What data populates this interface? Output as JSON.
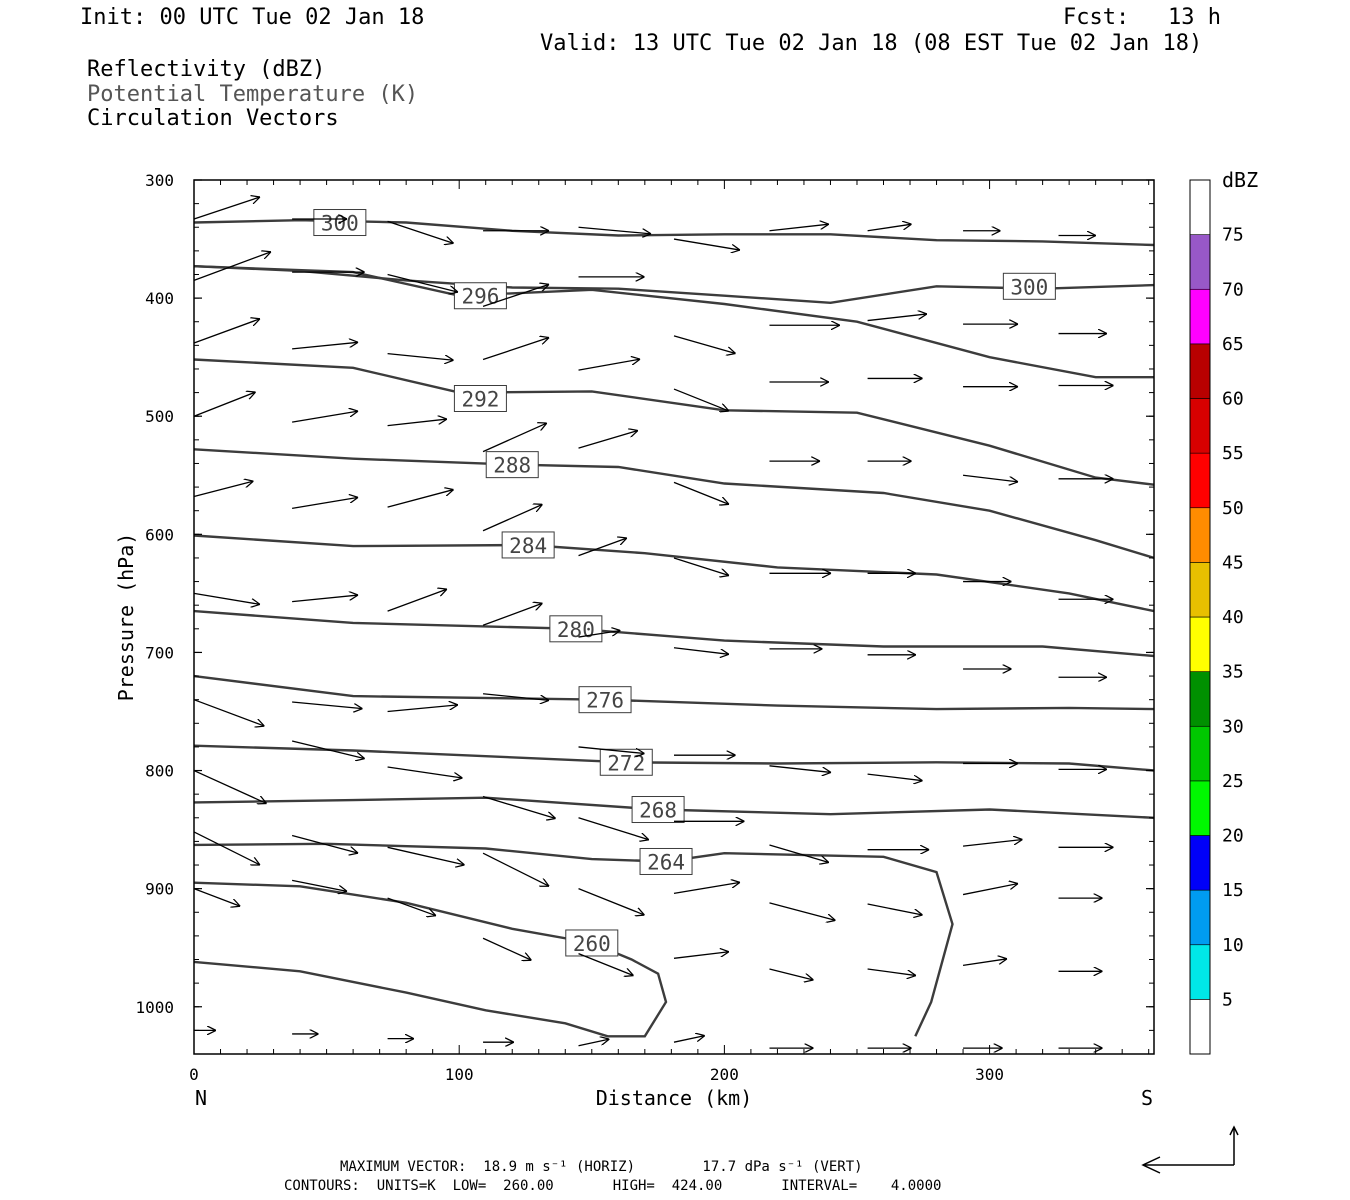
{
  "header": {
    "init": "Init: 00 UTC Tue 02 Jan 18",
    "fcst_label": "Fcst:",
    "fcst_value": "13 h",
    "valid": "Valid: 13 UTC Tue 02 Jan 18 (08 EST Tue 02 Jan 18)"
  },
  "fields": {
    "reflectivity": "Reflectivity (dBZ)",
    "theta": "Potential Temperature (K)",
    "vectors": "Circulation Vectors"
  },
  "colors": {
    "contour": "#3c3c3c",
    "vector": "#000000",
    "theta_legend": "#555555"
  },
  "chart_data": {
    "type": "line",
    "xlabel": "Distance (km)",
    "ylabel": "Pressure (hPa)",
    "xlim": [
      0,
      362
    ],
    "ylim": [
      300,
      1040
    ],
    "y_reversed": true,
    "x_ticks": [
      0,
      100,
      200,
      300
    ],
    "y_ticks": [
      300,
      400,
      500,
      600,
      700,
      800,
      900,
      1000
    ],
    "x_end_labels": {
      "left": "N",
      "right": "S"
    },
    "contours": [
      {
        "name": "300",
        "label_x": 55,
        "label_y": 336,
        "points": [
          [
            0,
            336
          ],
          [
            40,
            334
          ],
          [
            80,
            336
          ],
          [
            120,
            343
          ],
          [
            160,
            347
          ],
          [
            200,
            346
          ],
          [
            240,
            346
          ],
          [
            280,
            351
          ],
          [
            320,
            352
          ],
          [
            362,
            355
          ]
        ]
      },
      {
        "name": "300b",
        "label_x": 315,
        "label_y": 390,
        "points": [
          [
            0,
            373
          ],
          [
            40,
            377
          ],
          [
            80,
            385
          ],
          [
            120,
            391
          ],
          [
            160,
            392
          ],
          [
            200,
            398
          ],
          [
            240,
            404
          ],
          [
            280,
            390
          ],
          [
            320,
            392
          ],
          [
            362,
            389
          ]
        ]
      },
      {
        "name": "296",
        "label_x": 108,
        "label_y": 398,
        "points": [
          [
            0,
            373
          ],
          [
            60,
            378
          ],
          [
            100,
            398
          ],
          [
            150,
            393
          ],
          [
            200,
            405
          ],
          [
            250,
            420
          ],
          [
            300,
            450
          ],
          [
            340,
            467
          ],
          [
            362,
            467
          ]
        ]
      },
      {
        "name": "292",
        "label_x": 108,
        "label_y": 485,
        "points": [
          [
            0,
            452
          ],
          [
            60,
            459
          ],
          [
            100,
            480
          ],
          [
            150,
            479
          ],
          [
            200,
            495
          ],
          [
            250,
            497
          ],
          [
            300,
            525
          ],
          [
            340,
            552
          ],
          [
            362,
            558
          ]
        ]
      },
      {
        "name": "288",
        "label_x": 120,
        "label_y": 541,
        "points": [
          [
            0,
            528
          ],
          [
            60,
            536
          ],
          [
            120,
            541
          ],
          [
            160,
            543
          ],
          [
            200,
            557
          ],
          [
            260,
            565
          ],
          [
            300,
            580
          ],
          [
            340,
            605
          ],
          [
            362,
            620
          ]
        ]
      },
      {
        "name": "284",
        "label_x": 126,
        "label_y": 609,
        "points": [
          [
            0,
            601
          ],
          [
            60,
            610
          ],
          [
            126,
            609
          ],
          [
            170,
            616
          ],
          [
            220,
            628
          ],
          [
            280,
            634
          ],
          [
            330,
            650
          ],
          [
            362,
            665
          ]
        ]
      },
      {
        "name": "280",
        "label_x": 144,
        "label_y": 680,
        "points": [
          [
            0,
            665
          ],
          [
            60,
            675
          ],
          [
            144,
            680
          ],
          [
            200,
            690
          ],
          [
            260,
            695
          ],
          [
            320,
            695
          ],
          [
            362,
            703
          ]
        ]
      },
      {
        "name": "276",
        "label_x": 155,
        "label_y": 740,
        "points": [
          [
            0,
            720
          ],
          [
            60,
            737
          ],
          [
            155,
            740
          ],
          [
            220,
            745
          ],
          [
            280,
            748
          ],
          [
            330,
            747
          ],
          [
            362,
            748
          ]
        ]
      },
      {
        "name": "272",
        "label_x": 163,
        "label_y": 793,
        "points": [
          [
            0,
            779
          ],
          [
            60,
            783
          ],
          [
            163,
            793
          ],
          [
            220,
            794
          ],
          [
            280,
            793
          ],
          [
            330,
            794
          ],
          [
            362,
            800
          ]
        ]
      },
      {
        "name": "268",
        "label_x": 175,
        "label_y": 833,
        "points": [
          [
            0,
            827
          ],
          [
            60,
            825
          ],
          [
            110,
            823
          ],
          [
            175,
            833
          ],
          [
            240,
            837
          ],
          [
            300,
            833
          ],
          [
            362,
            840
          ]
        ]
      },
      {
        "name": "264",
        "label_x": 178,
        "label_y": 877,
        "points": [
          [
            0,
            863
          ],
          [
            50,
            862
          ],
          [
            110,
            866
          ],
          [
            150,
            875
          ],
          [
            178,
            877
          ],
          [
            200,
            870
          ],
          [
            260,
            873
          ],
          [
            280,
            886
          ],
          [
            286,
            930
          ],
          [
            278,
            996
          ],
          [
            272,
            1025
          ]
        ]
      },
      {
        "name": "260",
        "label_x": 150,
        "label_y": 946,
        "points": [
          [
            0,
            962
          ],
          [
            40,
            970
          ],
          [
            80,
            988
          ],
          [
            110,
            1003
          ],
          [
            140,
            1014
          ],
          [
            156,
            1025
          ],
          [
            170,
            1025
          ],
          [
            178,
            996
          ],
          [
            175,
            972
          ],
          [
            165,
            960
          ],
          [
            150,
            946
          ],
          [
            120,
            934
          ],
          [
            80,
            912
          ],
          [
            40,
            898
          ],
          [
            0,
            895
          ]
        ]
      }
    ],
    "vectors_units": "x in km, y in hPa, u/w in screen-scaled vector components",
    "vectors": [
      [
        0,
        333,
        30,
        -10
      ],
      [
        0,
        385,
        35,
        -13
      ],
      [
        0,
        438,
        30,
        -11
      ],
      [
        0,
        500,
        28,
        -11
      ],
      [
        0,
        568,
        27,
        -7
      ],
      [
        0,
        650,
        30,
        5
      ],
      [
        0,
        740,
        32,
        12
      ],
      [
        0,
        800,
        33,
        15
      ],
      [
        0,
        852,
        30,
        15
      ],
      [
        0,
        900,
        21,
        8
      ],
      [
        37,
        333,
        25,
        0
      ],
      [
        37,
        378,
        33,
        0
      ],
      [
        37,
        443,
        30,
        -3
      ],
      [
        37,
        505,
        30,
        -5
      ],
      [
        37,
        578,
        30,
        -5
      ],
      [
        37,
        657,
        30,
        -3
      ],
      [
        37,
        742,
        32,
        3
      ],
      [
        37,
        775,
        33,
        8
      ],
      [
        37,
        855,
        30,
        8
      ],
      [
        37,
        893,
        25,
        5
      ],
      [
        73,
        335,
        30,
        10
      ],
      [
        73,
        380,
        32,
        8
      ],
      [
        73,
        447,
        30,
        3
      ],
      [
        73,
        508,
        27,
        -3
      ],
      [
        73,
        577,
        30,
        -8
      ],
      [
        73,
        665,
        27,
        -10
      ],
      [
        73,
        750,
        32,
        -3
      ],
      [
        73,
        797,
        34,
        5
      ],
      [
        73,
        865,
        35,
        8
      ],
      [
        73,
        908,
        22,
        8
      ],
      [
        109,
        343,
        30,
        0
      ],
      [
        109,
        407,
        30,
        -10
      ],
      [
        109,
        452,
        30,
        -10
      ],
      [
        109,
        530,
        29,
        -13
      ],
      [
        109,
        597,
        27,
        -12
      ],
      [
        109,
        677,
        27,
        -10
      ],
      [
        109,
        735,
        30,
        3
      ],
      [
        109,
        822,
        33,
        10
      ],
      [
        109,
        870,
        30,
        15
      ],
      [
        109,
        942,
        22,
        10
      ],
      [
        145,
        340,
        33,
        3
      ],
      [
        145,
        382,
        30,
        0
      ],
      [
        145,
        461,
        28,
        -5
      ],
      [
        145,
        527,
        27,
        -8
      ],
      [
        145,
        618,
        22,
        -8
      ],
      [
        145,
        687,
        19,
        -3
      ],
      [
        145,
        780,
        30,
        3
      ],
      [
        145,
        840,
        32,
        10
      ],
      [
        145,
        900,
        30,
        12
      ],
      [
        145,
        955,
        25,
        10
      ],
      [
        181,
        350,
        30,
        5
      ],
      [
        181,
        432,
        28,
        8
      ],
      [
        181,
        477,
        25,
        10
      ],
      [
        181,
        556,
        25,
        10
      ],
      [
        181,
        620,
        25,
        8
      ],
      [
        181,
        696,
        25,
        3
      ],
      [
        181,
        787,
        28,
        0
      ],
      [
        181,
        843,
        32,
        0
      ],
      [
        181,
        904,
        30,
        -5
      ],
      [
        181,
        959,
        25,
        -3
      ],
      [
        217,
        343,
        27,
        -3
      ],
      [
        217,
        423,
        32,
        0
      ],
      [
        217,
        471,
        27,
        0
      ],
      [
        217,
        538,
        23,
        0
      ],
      [
        217,
        633,
        28,
        0
      ],
      [
        217,
        697,
        24,
        0
      ],
      [
        217,
        796,
        28,
        3
      ],
      [
        217,
        863,
        27,
        8
      ],
      [
        217,
        912,
        30,
        8
      ],
      [
        217,
        968,
        20,
        5
      ],
      [
        254,
        343,
        20,
        -3
      ],
      [
        254,
        419,
        27,
        -3
      ],
      [
        254,
        468,
        25,
        0
      ],
      [
        254,
        538,
        20,
        0
      ],
      [
        254,
        633,
        22,
        0
      ],
      [
        254,
        702,
        22,
        0
      ],
      [
        254,
        803,
        25,
        3
      ],
      [
        254,
        867,
        28,
        0
      ],
      [
        254,
        913,
        25,
        5
      ],
      [
        254,
        968,
        22,
        3
      ],
      [
        290,
        343,
        17,
        0
      ],
      [
        290,
        422,
        25,
        0
      ],
      [
        290,
        475,
        25,
        0
      ],
      [
        290,
        550,
        25,
        3
      ],
      [
        290,
        640,
        22,
        0
      ],
      [
        290,
        714,
        22,
        0
      ],
      [
        290,
        794,
        25,
        0
      ],
      [
        290,
        864,
        27,
        -3
      ],
      [
        290,
        905,
        25,
        -5
      ],
      [
        290,
        965,
        20,
        -3
      ],
      [
        326,
        347,
        17,
        0
      ],
      [
        326,
        430,
        22,
        0
      ],
      [
        326,
        474,
        25,
        0
      ],
      [
        326,
        553,
        25,
        0
      ],
      [
        326,
        655,
        25,
        0
      ],
      [
        326,
        721,
        22,
        0
      ],
      [
        326,
        799,
        22,
        0
      ],
      [
        326,
        865,
        25,
        0
      ],
      [
        326,
        908,
        20,
        0
      ],
      [
        326,
        970,
        20,
        0
      ],
      [
        0,
        1020,
        10,
        0
      ],
      [
        37,
        1023,
        12,
        0
      ],
      [
        73,
        1027,
        12,
        0
      ],
      [
        109,
        1030,
        14,
        0
      ],
      [
        145,
        1033,
        14,
        -3
      ],
      [
        181,
        1030,
        14,
        -3
      ],
      [
        217,
        1035,
        20,
        0
      ],
      [
        254,
        1035,
        20,
        0
      ],
      [
        290,
        1035,
        18,
        0
      ],
      [
        326,
        1035,
        20,
        0
      ]
    ],
    "colorbar": {
      "label": "dBZ",
      "levels": [
        "5",
        "10",
        "15",
        "20",
        "25",
        "30",
        "35",
        "40",
        "45",
        "50",
        "55",
        "60",
        "65",
        "70",
        "75"
      ],
      "colors": [
        "#ffffff",
        "#00e8e8",
        "#009cf0",
        "#0000f8",
        "#00f800",
        "#00c800",
        "#009000",
        "#ffff00",
        "#e8c000",
        "#ff8c00",
        "#ff0000",
        "#d80000",
        "#b80000",
        "#ff00ff",
        "#9858c8",
        "#ffffff"
      ]
    }
  },
  "footer": {
    "max_vector": "MAXIMUM VECTOR:  18.9 m s⁻¹ (HORIZ)        17.7 dPa s⁻¹ (VERT)",
    "contours": "CONTOURS:  UNITS=K  LOW=  260.00       HIGH=  424.00       INTERVAL=    4.0000"
  }
}
